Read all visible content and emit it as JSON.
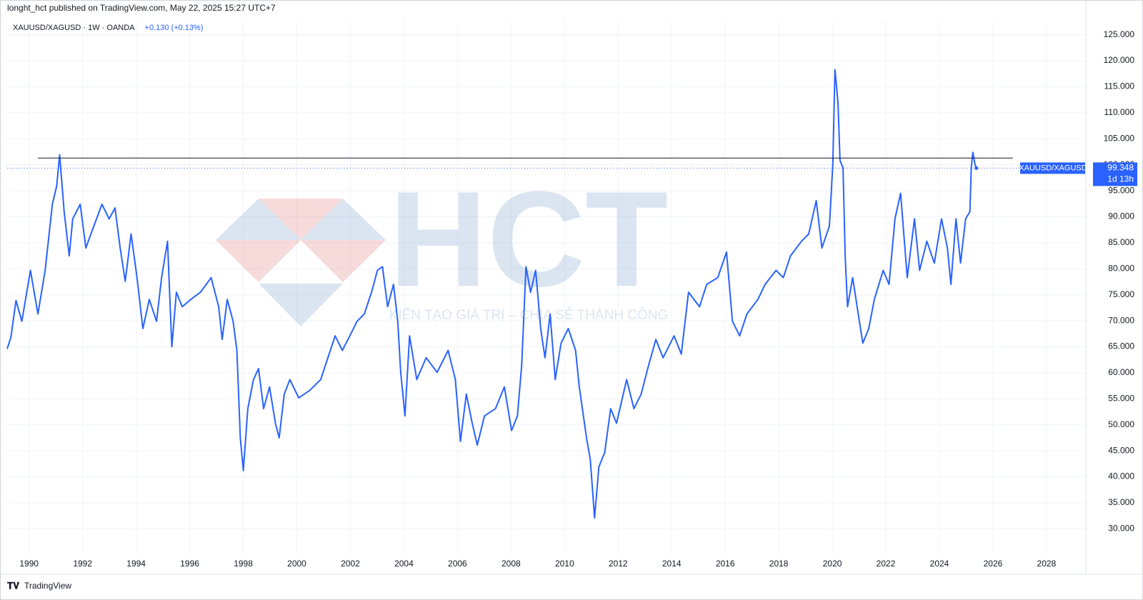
{
  "header": "longht_hct published on TradingView.com, May 22, 2025 15:27 UTC+7",
  "footer": "TradingView",
  "watermark": {
    "logo": "HCT",
    "slogan": "KIẾN TẠO GIÁ TRỊ – CHIA SẺ THÀNH CÔNG"
  },
  "chart_data": {
    "type": "line",
    "legend": {
      "symbol": "XAUUSD/XAGUSD · 1W · OANDA",
      "change": "+0.130 (+0.13%)"
    },
    "price_label": {
      "countdown": "1d 13h"
    },
    "x": [
      1989.18,
      1989.32,
      1989.51,
      1989.73,
      1990.05,
      1990.33,
      1990.6,
      1990.87,
      1991.03,
      1991.14,
      1991.31,
      1991.5,
      1991.63,
      1991.91,
      1992.12,
      1992.31,
      1992.72,
      1992.99,
      1993.21,
      1993.4,
      1993.59,
      1993.81,
      1994.03,
      1994.25,
      1994.49,
      1994.76,
      1994.95,
      1995.17,
      1995.33,
      1995.5,
      1995.72,
      1996.04,
      1996.4,
      1996.8,
      1997.08,
      1997.21,
      1997.4,
      1997.62,
      1997.76,
      1997.89,
      1998.0,
      1998.17,
      1998.38,
      1998.57,
      1998.76,
      1998.98,
      1999.2,
      1999.34,
      1999.53,
      1999.74,
      2000.07,
      2000.48,
      2000.89,
      2001.16,
      2001.43,
      2001.7,
      2001.98,
      2002.25,
      2002.52,
      2002.79,
      2003.01,
      2003.2,
      2003.39,
      2003.61,
      2003.77,
      2003.88,
      2004.04,
      2004.21,
      2004.48,
      2004.83,
      2005.24,
      2005.65,
      2005.92,
      2006.11,
      2006.33,
      2006.55,
      2006.74,
      2007.01,
      2007.42,
      2007.75,
      2008.02,
      2008.24,
      2008.4,
      2008.56,
      2008.73,
      2008.92,
      2009.11,
      2009.27,
      2009.46,
      2009.65,
      2009.87,
      2010.14,
      2010.41,
      2010.55,
      2010.82,
      2010.96,
      2011.12,
      2011.28,
      2011.5,
      2011.72,
      2011.94,
      2012.32,
      2012.59,
      2012.86,
      2013.14,
      2013.41,
      2013.68,
      2014.09,
      2014.36,
      2014.63,
      2015.04,
      2015.31,
      2015.72,
      2016.05,
      2016.27,
      2016.54,
      2016.81,
      2017.22,
      2017.49,
      2017.9,
      2018.17,
      2018.44,
      2018.85,
      2019.12,
      2019.4,
      2019.61,
      2019.89,
      2020.02,
      2020.1,
      2020.21,
      2020.29,
      2020.4,
      2020.48,
      2020.57,
      2020.76,
      2020.97,
      2021.14,
      2021.36,
      2021.57,
      2021.9,
      2022.12,
      2022.34,
      2022.55,
      2022.8,
      2023.07,
      2023.26,
      2023.53,
      2023.81,
      2024.08,
      2024.3,
      2024.43,
      2024.62,
      2024.79,
      2024.98,
      2025.14,
      2025.19,
      2025.25,
      2025.33,
      2025.38
    ],
    "series": [
      {
        "name": "XAUUSD/XAGUSD",
        "color": "#2962ff",
        "values": [
          64.6,
          66.8,
          73.9,
          69.9,
          79.7,
          71.3,
          79.7,
          92.4,
          95.9,
          101.9,
          91,
          82.5,
          89.6,
          92.4,
          84,
          86.7,
          92.4,
          89.6,
          91.7,
          84,
          77.6,
          86.7,
          78.3,
          68.5,
          74.1,
          69.9,
          78.3,
          85.3,
          65,
          75.5,
          72.7,
          74.1,
          75.5,
          78.3,
          72.7,
          66.4,
          74.1,
          69.9,
          64.3,
          47.5,
          41.2,
          53.1,
          58.7,
          60.8,
          53.1,
          57.3,
          50.3,
          47.5,
          55.9,
          58.7,
          55.2,
          56.6,
          58.7,
          62.9,
          67.1,
          64.3,
          67.1,
          69.9,
          71.3,
          75.5,
          79.7,
          80.4,
          72.7,
          77,
          69.9,
          60.1,
          51.7,
          67.1,
          58.7,
          62.9,
          60.1,
          64.3,
          58.7,
          46.8,
          55.9,
          50.3,
          46.1,
          51.7,
          53.1,
          57.3,
          48.9,
          51.7,
          61.5,
          80.4,
          75.5,
          79.7,
          68.5,
          62.9,
          71.3,
          58.7,
          65.7,
          68.5,
          64.3,
          57.3,
          47.5,
          43.3,
          32.1,
          41.9,
          44.7,
          53.1,
          50.3,
          58.7,
          53.1,
          55.9,
          61.5,
          66.4,
          62.9,
          67.1,
          63.6,
          75.5,
          72.7,
          77,
          78.3,
          83.2,
          69.9,
          67.1,
          71.3,
          74.1,
          77,
          79.7,
          78.3,
          82.5,
          85.3,
          86.7,
          93.1,
          84,
          88.2,
          100.1,
          118.3,
          112,
          100.8,
          99.4,
          82.5,
          72.7,
          78.3,
          71.3,
          65.7,
          68.5,
          74.1,
          79.7,
          77,
          89.6,
          94.5,
          78.3,
          89.6,
          79.7,
          85.3,
          81.1,
          89.6,
          84,
          77,
          89.6,
          81.1,
          89.6,
          91,
          99.4,
          102.4,
          100.1,
          99.348
        ]
      }
    ],
    "hline": {
      "y": 101.3,
      "x": [
        1990.33,
        2026.74
      ]
    },
    "xlim": [
      1989.18,
      2029.47
    ],
    "xticks": [
      1990,
      1992,
      1994,
      1996,
      1998,
      2000,
      2002,
      2004,
      2006,
      2008,
      2010,
      2012,
      2014,
      2016,
      2018,
      2020,
      2022,
      2024,
      2026,
      2028
    ],
    "ylim": [
      25.1,
      127.7
    ],
    "yticks": [
      {
        "value": 30,
        "label": "30.000"
      },
      {
        "value": 35,
        "label": "35.000"
      },
      {
        "value": 40,
        "label": "40.000"
      },
      {
        "value": 45,
        "label": "45.000"
      },
      {
        "value": 50,
        "label": "50.000"
      },
      {
        "value": 55,
        "label": "55.000"
      },
      {
        "value": 60,
        "label": "60.000"
      },
      {
        "value": 65,
        "label": "65.000"
      },
      {
        "value": 70,
        "label": "70.000"
      },
      {
        "value": 75,
        "label": "75.000"
      },
      {
        "value": 80,
        "label": "80.000"
      },
      {
        "value": 85,
        "label": "85.000"
      },
      {
        "value": 90,
        "label": "90.000"
      },
      {
        "value": 95,
        "label": "95.000"
      },
      {
        "value": 100,
        "label": "100.000"
      },
      {
        "value": 105,
        "label": "105.000"
      },
      {
        "value": 110,
        "label": "110.000"
      },
      {
        "value": 115,
        "label": "115.000"
      },
      {
        "value": 120,
        "label": "120.000"
      },
      {
        "value": 125,
        "label": "125.000"
      }
    ],
    "grid": true
  }
}
